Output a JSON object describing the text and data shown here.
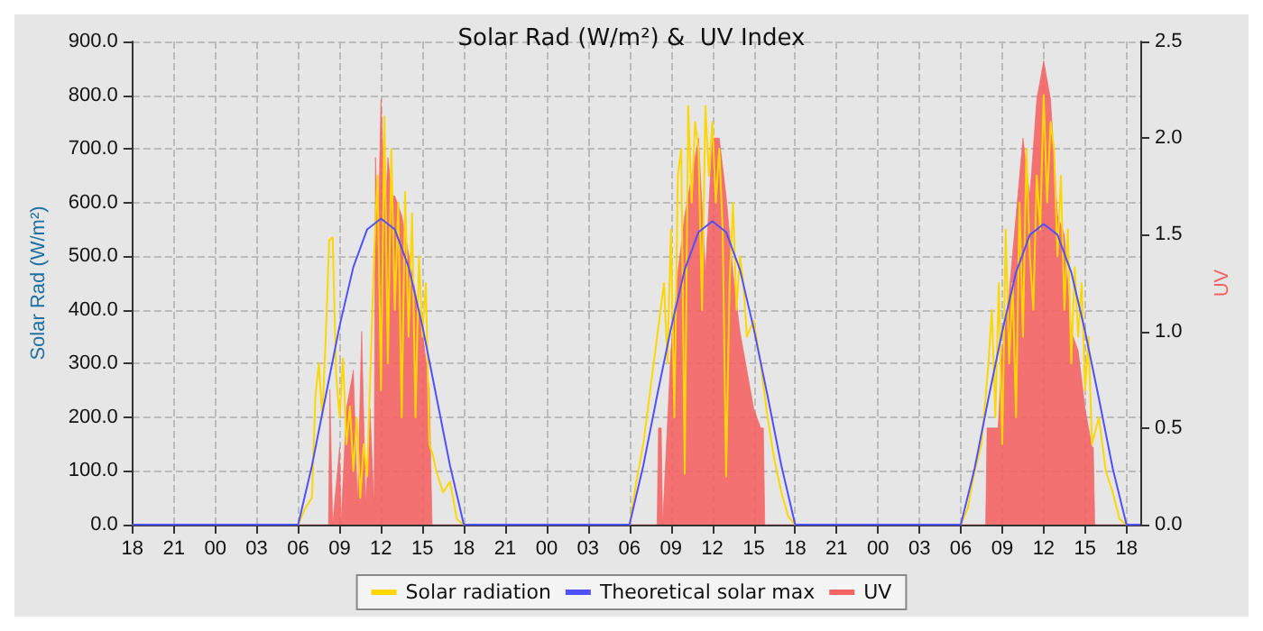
{
  "chart_data": {
    "type": "line",
    "title": "Solar Rad (W/m²) &  UV Index",
    "ylabel": "Solar Rad (W/m²)",
    "y2label": "UV",
    "xlim": [
      18,
      91
    ],
    "xticks": [
      {
        "value": 18,
        "label": "18"
      },
      {
        "value": 21,
        "label": "21"
      },
      {
        "value": 24,
        "label": "00"
      },
      {
        "value": 27,
        "label": "03"
      },
      {
        "value": 30,
        "label": "06"
      },
      {
        "value": 33,
        "label": "09"
      },
      {
        "value": 36,
        "label": "12"
      },
      {
        "value": 39,
        "label": "15"
      },
      {
        "value": 42,
        "label": "18"
      },
      {
        "value": 45,
        "label": "21"
      },
      {
        "value": 48,
        "label": "00"
      },
      {
        "value": 51,
        "label": "03"
      },
      {
        "value": 54,
        "label": "06"
      },
      {
        "value": 57,
        "label": "09"
      },
      {
        "value": 60,
        "label": "12"
      },
      {
        "value": 63,
        "label": "15"
      },
      {
        "value": 66,
        "label": "18"
      },
      {
        "value": 69,
        "label": "21"
      },
      {
        "value": 72,
        "label": "00"
      },
      {
        "value": 75,
        "label": "03"
      },
      {
        "value": 78,
        "label": "06"
      },
      {
        "value": 81,
        "label": "09"
      },
      {
        "value": 84,
        "label": "12"
      },
      {
        "value": 87,
        "label": "15"
      },
      {
        "value": 90,
        "label": "18"
      }
    ],
    "ylim": [
      0,
      900
    ],
    "yticks": [
      {
        "value": 0,
        "label": "0.0"
      },
      {
        "value": 100,
        "label": "100.0"
      },
      {
        "value": 200,
        "label": "200.0"
      },
      {
        "value": 300,
        "label": "300.0"
      },
      {
        "value": 400,
        "label": "400.0"
      },
      {
        "value": 500,
        "label": "500.0"
      },
      {
        "value": 600,
        "label": "600.0"
      },
      {
        "value": 700,
        "label": "700.0"
      },
      {
        "value": 800,
        "label": "800.0"
      },
      {
        "value": 900,
        "label": "900.0"
      }
    ],
    "y2lim": [
      0,
      2.5
    ],
    "y2ticks": [
      {
        "value": 0,
        "label": "0.0"
      },
      {
        "value": 0.5,
        "label": "0.5"
      },
      {
        "value": 1,
        "label": "1.0"
      },
      {
        "value": 1.5,
        "label": "1.5"
      },
      {
        "value": 2,
        "label": "2.0"
      },
      {
        "value": 2.5,
        "label": "2.5"
      }
    ],
    "grid": true,
    "legend": "bottom",
    "marker": "none",
    "line_style": "solid",
    "series": [
      {
        "name": "Solar radiation",
        "color": "#ffd700",
        "x": [
          18,
          30,
          30.5,
          31,
          31.25,
          31.5,
          31.75,
          32,
          32.25,
          32.5,
          32.75,
          33,
          33.25,
          33.5,
          33.75,
          34,
          34.25,
          34.5,
          34.75,
          35,
          35.25,
          35.5,
          35.75,
          36,
          36.25,
          36.5,
          36.75,
          37,
          37.25,
          37.5,
          37.75,
          38,
          38.25,
          38.5,
          38.75,
          39,
          39.25,
          39.5,
          39.75,
          40,
          40.5,
          41,
          41.5,
          42,
          54,
          54.5,
          55,
          55.5,
          56,
          56.5,
          56.75,
          57,
          57.25,
          57.5,
          57.75,
          58,
          58.25,
          58.5,
          58.75,
          59,
          59.25,
          59.5,
          59.75,
          60,
          60.25,
          60.5,
          60.75,
          61,
          61.25,
          61.5,
          61.75,
          62,
          62.25,
          62.5,
          63,
          63.5,
          64,
          64.5,
          65,
          65.5,
          66,
          78,
          78.5,
          79,
          79.5,
          80,
          80.25,
          80.5,
          80.75,
          81,
          81.25,
          81.5,
          81.75,
          82,
          82.25,
          82.5,
          82.75,
          83,
          83.25,
          83.5,
          83.75,
          84,
          84.25,
          84.5,
          84.75,
          85,
          85.25,
          85.5,
          85.75,
          86,
          86.25,
          86.5,
          86.75,
          87,
          87.25,
          87.5,
          88,
          88.5,
          89,
          89.5,
          90,
          91
        ],
        "values": [
          0,
          0,
          30,
          50,
          240,
          300,
          200,
          350,
          530,
          535,
          280,
          200,
          310,
          150,
          220,
          100,
          200,
          50,
          150,
          90,
          300,
          500,
          650,
          250,
          760,
          300,
          700,
          400,
          600,
          200,
          620,
          350,
          580,
          200,
          500,
          350,
          450,
          150,
          130,
          100,
          60,
          80,
          10,
          0,
          0,
          80,
          150,
          250,
          350,
          450,
          300,
          550,
          200,
          650,
          700,
          95,
          780,
          600,
          750,
          700,
          400,
          780,
          650,
          750,
          600,
          700,
          550,
          90,
          450,
          600,
          400,
          500,
          450,
          350,
          380,
          300,
          200,
          120,
          60,
          15,
          0,
          0,
          30,
          100,
          150,
          300,
          400,
          200,
          450,
          150,
          550,
          300,
          450,
          200,
          600,
          350,
          700,
          500,
          400,
          650,
          550,
          800,
          600,
          750,
          700,
          500,
          650,
          400,
          550,
          300,
          480,
          350,
          450,
          250,
          350,
          150,
          200,
          100,
          60,
          10,
          0,
          0
        ]
      },
      {
        "name": "Theoretical solar max",
        "color": "#5050ff",
        "x": [
          18,
          30,
          31,
          32,
          33,
          34,
          35,
          36,
          37,
          38,
          39,
          40,
          41,
          42,
          54,
          55,
          56,
          57,
          58,
          59,
          60,
          61,
          62,
          63,
          64,
          65,
          66,
          78,
          79,
          80,
          81,
          82,
          83,
          84,
          85,
          86,
          87,
          88,
          89,
          90,
          91
        ],
        "values": [
          0,
          0,
          110,
          240,
          370,
          480,
          550,
          570,
          550,
          480,
          370,
          240,
          110,
          0,
          0,
          110,
          240,
          365,
          475,
          545,
          565,
          545,
          475,
          365,
          240,
          110,
          0,
          0,
          105,
          235,
          360,
          470,
          540,
          560,
          540,
          470,
          360,
          235,
          105,
          0,
          0
        ]
      },
      {
        "name": "UV",
        "type": "area",
        "axis": "y2",
        "color": "#f46464",
        "x": [
          18.5,
          32.2,
          32.3,
          32.5,
          33.0,
          33.1,
          33.5,
          34,
          34.3,
          34.6,
          34.9,
          35.2,
          35.5,
          35.6,
          35.8,
          36,
          36.3,
          36.5,
          36.8,
          37,
          37.5,
          38,
          38.5,
          39,
          39.5,
          39.7,
          56.0,
          56.1,
          56.3,
          56.4,
          57,
          57.5,
          58,
          58.5,
          59,
          59.5,
          60,
          60.5,
          61,
          61.5,
          62,
          62.5,
          63,
          63.5,
          63.7,
          63.8,
          79.8,
          79.9,
          80.7,
          81,
          81.5,
          82,
          82.5,
          83,
          83.5,
          84,
          84.5,
          85,
          85.5,
          86,
          86.5,
          87,
          87.5,
          87.6,
          87.7,
          90
        ],
        "values": [
          0,
          0,
          0.7,
          0,
          0.4,
          0,
          0.6,
          0.8,
          0.1,
          1.0,
          0.1,
          0.6,
          0.1,
          1.9,
          1.5,
          2.2,
          1.6,
          1.9,
          1.7,
          1.7,
          1.6,
          1.4,
          1.2,
          1.0,
          0.7,
          0,
          0,
          0.5,
          0.5,
          0,
          0.9,
          1.3,
          1.6,
          1.8,
          2.0,
          1.3,
          2.0,
          2.0,
          1.7,
          1.3,
          1.0,
          0.8,
          0.6,
          0.5,
          0.5,
          0,
          0,
          0.5,
          0.5,
          0.9,
          1.2,
          1.6,
          2.0,
          1.7,
          2.2,
          2.4,
          2.2,
          1.6,
          1.5,
          1.0,
          0.9,
          0.6,
          0.4,
          0.4,
          0,
          0
        ]
      }
    ]
  }
}
